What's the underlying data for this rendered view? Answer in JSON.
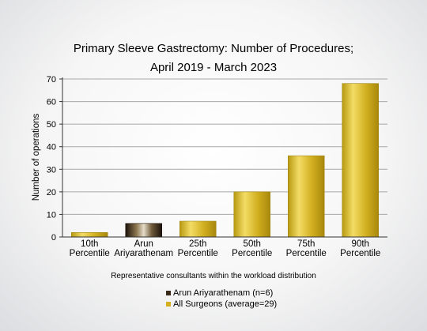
{
  "chart_data": {
    "type": "bar",
    "title_lines": [
      "Primary Sleeve Gastrectomy: Number of Procedures;",
      "April 2019 - March 2023"
    ],
    "xlabel": "Representative consultants within the workload distribution",
    "ylabel": "Number of operations",
    "ylim": [
      0,
      70
    ],
    "yticks": [
      0,
      10,
      20,
      30,
      40,
      50,
      60,
      70
    ],
    "grid": true,
    "categories": [
      [
        "10th",
        "Percentile"
      ],
      [
        "Arun",
        "Ariyarathenam"
      ],
      [
        "25th",
        "Percentile"
      ],
      [
        "50th",
        "Percentile"
      ],
      [
        "75th",
        "Percentile"
      ],
      [
        "90th",
        "Percentile"
      ]
    ],
    "values": [
      2,
      6,
      7,
      20,
      36,
      68
    ],
    "bar_series": [
      1,
      0,
      1,
      1,
      1,
      1
    ],
    "series": [
      {
        "name": "Arun Ariyarathenam (n=6)",
        "color": "#3a2a1a"
      },
      {
        "name": "All Surgeons (average=29)",
        "color": "#d4b020"
      }
    ],
    "legend_position": "bottom"
  }
}
